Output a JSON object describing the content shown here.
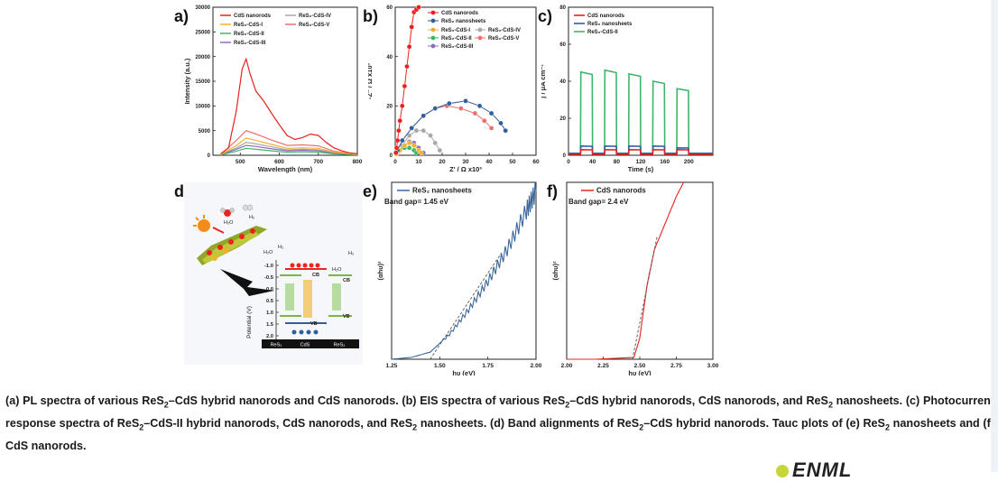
{
  "panel_labels": {
    "a": "a)",
    "b": "b)",
    "c": "c)",
    "d": "d)",
    "e": "e)",
    "f": "f)"
  },
  "colors": {
    "cds": "#e8221e",
    "res2": "#2f5f9e",
    "res2cds1": "#f2b12a",
    "res2cds2": "#3fb56a",
    "res2cds3": "#8a6fb8",
    "res2cds4": "#a8a8a8",
    "res2cds5": "#ef6f6f",
    "tauc_res2": "#3a679a",
    "tauc_cds": "#e8221e"
  },
  "chart_data": [
    {
      "type": "line",
      "panel": "a",
      "xlabel": "Wavelength (nm)",
      "ylabel": "Intensity (a.u.)",
      "xlim": [
        430,
        800
      ],
      "ylim": [
        0,
        30000
      ],
      "xticks": [
        "500",
        "600",
        "700",
        "800"
      ],
      "yticks": [
        "0",
        "5000",
        "10000",
        "15000",
        "20000",
        "25000",
        "30000"
      ],
      "legend": [
        "CdS nanorods",
        "ReS₂-CdS-I",
        "ReS₂-CdS-II",
        "ReS₂-CdS-III",
        "ReS₂-CdS-IV",
        "ReS₂-CdS-V"
      ],
      "series": [
        {
          "name": "CdS nanorods",
          "x": [
            450,
            470,
            490,
            505,
            515,
            525,
            540,
            560,
            580,
            600,
            620,
            640,
            660,
            680,
            700,
            720,
            740,
            760,
            780,
            800
          ],
          "y": [
            300,
            1500,
            9000,
            17500,
            19500,
            16500,
            13000,
            11000,
            8500,
            6200,
            4000,
            3200,
            3600,
            4300,
            4000,
            2600,
            1500,
            900,
            500,
            300
          ]
        },
        {
          "name": "ReS₂-CdS-I",
          "x": [
            450,
            490,
            515,
            540,
            580,
            620,
            660,
            700,
            740,
            800
          ],
          "y": [
            100,
            2000,
            3500,
            3000,
            2200,
            1400,
            1500,
            1400,
            600,
            150
          ]
        },
        {
          "name": "ReS₂-CdS-II",
          "x": [
            450,
            490,
            515,
            540,
            580,
            620,
            660,
            700,
            740,
            800
          ],
          "y": [
            100,
            800,
            1400,
            1200,
            900,
            600,
            700,
            600,
            300,
            100
          ]
        },
        {
          "name": "ReS₂-CdS-III",
          "x": [
            450,
            490,
            515,
            540,
            580,
            620,
            660,
            700,
            740,
            800
          ],
          "y": [
            100,
            1200,
            2000,
            1800,
            1300,
            900,
            1000,
            900,
            400,
            120
          ]
        },
        {
          "name": "ReS₂-CdS-IV",
          "x": [
            450,
            490,
            515,
            540,
            580,
            620,
            660,
            700,
            740,
            800
          ],
          "y": [
            100,
            1500,
            2600,
            2300,
            1700,
            1100,
            1200,
            1100,
            500,
            130
          ]
        },
        {
          "name": "ReS₂-CdS-V",
          "x": [
            450,
            490,
            515,
            540,
            580,
            620,
            660,
            700,
            740,
            800
          ],
          "y": [
            150,
            3000,
            5000,
            4300,
            3100,
            2000,
            2100,
            1900,
            800,
            200
          ]
        }
      ]
    },
    {
      "type": "scatter",
      "panel": "b",
      "xlabel": "Z' / Ω x10³",
      "ylabel": "-Z'' / Ω x10³",
      "xlim": [
        0,
        60
      ],
      "ylim": [
        0,
        60
      ],
      "xticks": [
        "0",
        "10",
        "20",
        "30",
        "40",
        "50",
        "60"
      ],
      "yticks": [
        "0",
        "20",
        "40",
        "60"
      ],
      "legend": [
        "CdS nanorods",
        "ReS₂ nanosheets",
        "ReS₂-CdS-I",
        "ReS₂-CdS-II",
        "ReS₂-CdS-III",
        "ReS₂-CdS-IV",
        "ReS₂-CdS-V"
      ],
      "series": [
        {
          "name": "CdS nanorods",
          "x": [
            0.3,
            0.6,
            1,
            1.5,
            2,
            3,
            4,
            5,
            6,
            7,
            8,
            9,
            10
          ],
          "y": [
            1,
            3,
            6,
            10,
            14,
            20,
            28,
            36,
            44,
            52,
            58,
            59,
            60
          ]
        },
        {
          "name": "ReS₂ nanosheets",
          "x": [
            1,
            3,
            7,
            12,
            17,
            23,
            30,
            36,
            41,
            45,
            47
          ],
          "y": [
            2,
            6,
            11,
            16,
            19,
            21,
            22,
            20,
            17,
            13,
            10
          ]
        },
        {
          "name": "ReS₂-CdS-I",
          "x": [
            0.5,
            2,
            4,
            6,
            8,
            10,
            11
          ],
          "y": [
            0.5,
            2,
            4,
            5,
            4,
            2,
            1
          ]
        },
        {
          "name": "ReS₂-CdS-II",
          "x": [
            0.5,
            2,
            4,
            6,
            8,
            9
          ],
          "y": [
            0.5,
            2,
            3,
            3,
            2,
            1
          ]
        },
        {
          "name": "ReS₂-CdS-III",
          "x": [
            0.5,
            2,
            4,
            6,
            8,
            10,
            12
          ],
          "y": [
            0.5,
            2,
            4,
            5.5,
            5,
            3,
            1
          ]
        },
        {
          "name": "ReS₂-CdS-IV",
          "x": [
            1,
            3,
            6,
            9,
            12,
            15,
            17,
            19
          ],
          "y": [
            1,
            4,
            8,
            10,
            10,
            8,
            5,
            2
          ]
        },
        {
          "name": "ReS₂-CdS-V",
          "x": [
            1,
            3,
            7,
            12,
            17,
            22,
            28,
            34,
            38,
            41
          ],
          "y": [
            2,
            6,
            11,
            16,
            19,
            20,
            19,
            17,
            14,
            11
          ]
        }
      ]
    },
    {
      "type": "line",
      "panel": "c",
      "xlabel": "Time (s)",
      "ylabel": "j / μA cm⁻²",
      "xlim": [
        0,
        240
      ],
      "ylim": [
        0,
        80
      ],
      "xticks": [
        "0",
        "40",
        "80",
        "120",
        "160",
        "200"
      ],
      "yticks": [
        "0",
        "20",
        "40",
        "60",
        "80"
      ],
      "legend": [
        "CdS nanorods",
        "ReS₂ nanosheets",
        "ReS₂-CdS-II"
      ],
      "light_on_intervals": [
        [
          20,
          40
        ],
        [
          60,
          80
        ],
        [
          100,
          120
        ],
        [
          140,
          160
        ],
        [
          180,
          200
        ]
      ],
      "series": [
        {
          "name": "ReS₂-CdS-II",
          "on_levels": [
            45,
            46,
            44,
            40,
            36
          ],
          "off_level": 1
        },
        {
          "name": "ReS₂ nanosheets",
          "on_levels": [
            5,
            5,
            5,
            5,
            4
          ],
          "off_level": 1
        },
        {
          "name": "CdS nanorods",
          "on_levels": [
            3,
            3,
            3,
            3,
            3
          ],
          "off_level": 0.5
        }
      ]
    },
    {
      "type": "line",
      "panel": "e",
      "xlabel": "hυ (eV)",
      "ylabel": "(αhυ)²",
      "xlim": [
        1.25,
        2.0
      ],
      "xticks": [
        "1.25",
        "1.50",
        "1.75",
        "2.00"
      ],
      "legend": [
        "ReS₂ nanosheets"
      ],
      "annotation": "Band gap= 1.45 eV",
      "series": [
        {
          "name": "ReS₂ nanosheets",
          "x": [
            1.25,
            1.35,
            1.45,
            1.55,
            1.65,
            1.75,
            1.85,
            1.95,
            2.0
          ],
          "y": [
            0,
            1,
            4,
            14,
            28,
            44,
            62,
            84,
            95
          ]
        }
      ]
    },
    {
      "type": "line",
      "panel": "f",
      "xlabel": "hυ (eV)",
      "ylabel": "(αhυ)²",
      "xlim": [
        2.0,
        3.0
      ],
      "xticks": [
        "2.00",
        "2.25",
        "2.50",
        "2.75",
        "3.00"
      ],
      "legend": [
        "CdS nanorods"
      ],
      "annotation": "Band gap= 2.4 eV",
      "series": [
        {
          "name": "CdS nanorods",
          "x": [
            2.0,
            2.2,
            2.46,
            2.5,
            2.55,
            2.6,
            2.65,
            2.7,
            2.75,
            2.8
          ],
          "y": [
            0,
            0,
            1,
            12,
            42,
            62,
            72,
            82,
            92,
            100
          ]
        }
      ]
    }
  ],
  "diagram_d": {
    "ylabel": "Potential (V)",
    "yticks": [
      "-1.0",
      "-0.5",
      "0.0",
      "0.5",
      "1.0",
      "1.5",
      "2.0"
    ],
    "molecules": [
      "H₂O",
      "H₂",
      "H₂O",
      "H₂",
      "H₂O",
      "H₂"
    ],
    "band_labels": [
      "CB",
      "CB",
      "VB",
      "VB"
    ],
    "materials": [
      "ReS₂",
      "CdS",
      "ReS₂"
    ]
  },
  "caption": {
    "l1a": "(a) PL spectra of various ReS",
    "l1b": "–CdS hybrid nanorods and CdS nanorods. (b) EIS spectra of various ReS",
    "l1c": "–CdS hybrid nanorods, CdS nanorods, and ReS",
    "l2a": "nanosheets. (c) Photocurrent response spectra of ReS",
    "l2b": "–CdS-II hybrid nanorods, CdS nanorods, and ReS",
    "l2c": " nanosheets. (d) Band alignments of ReS",
    "l2d": "–CdS hybrid",
    "l3a": "nanorods. Tauc plots of (e) ReS",
    "l3b": " nanosheets and (f) CdS nanorods.",
    "sub": "2"
  },
  "logo": "ENML"
}
